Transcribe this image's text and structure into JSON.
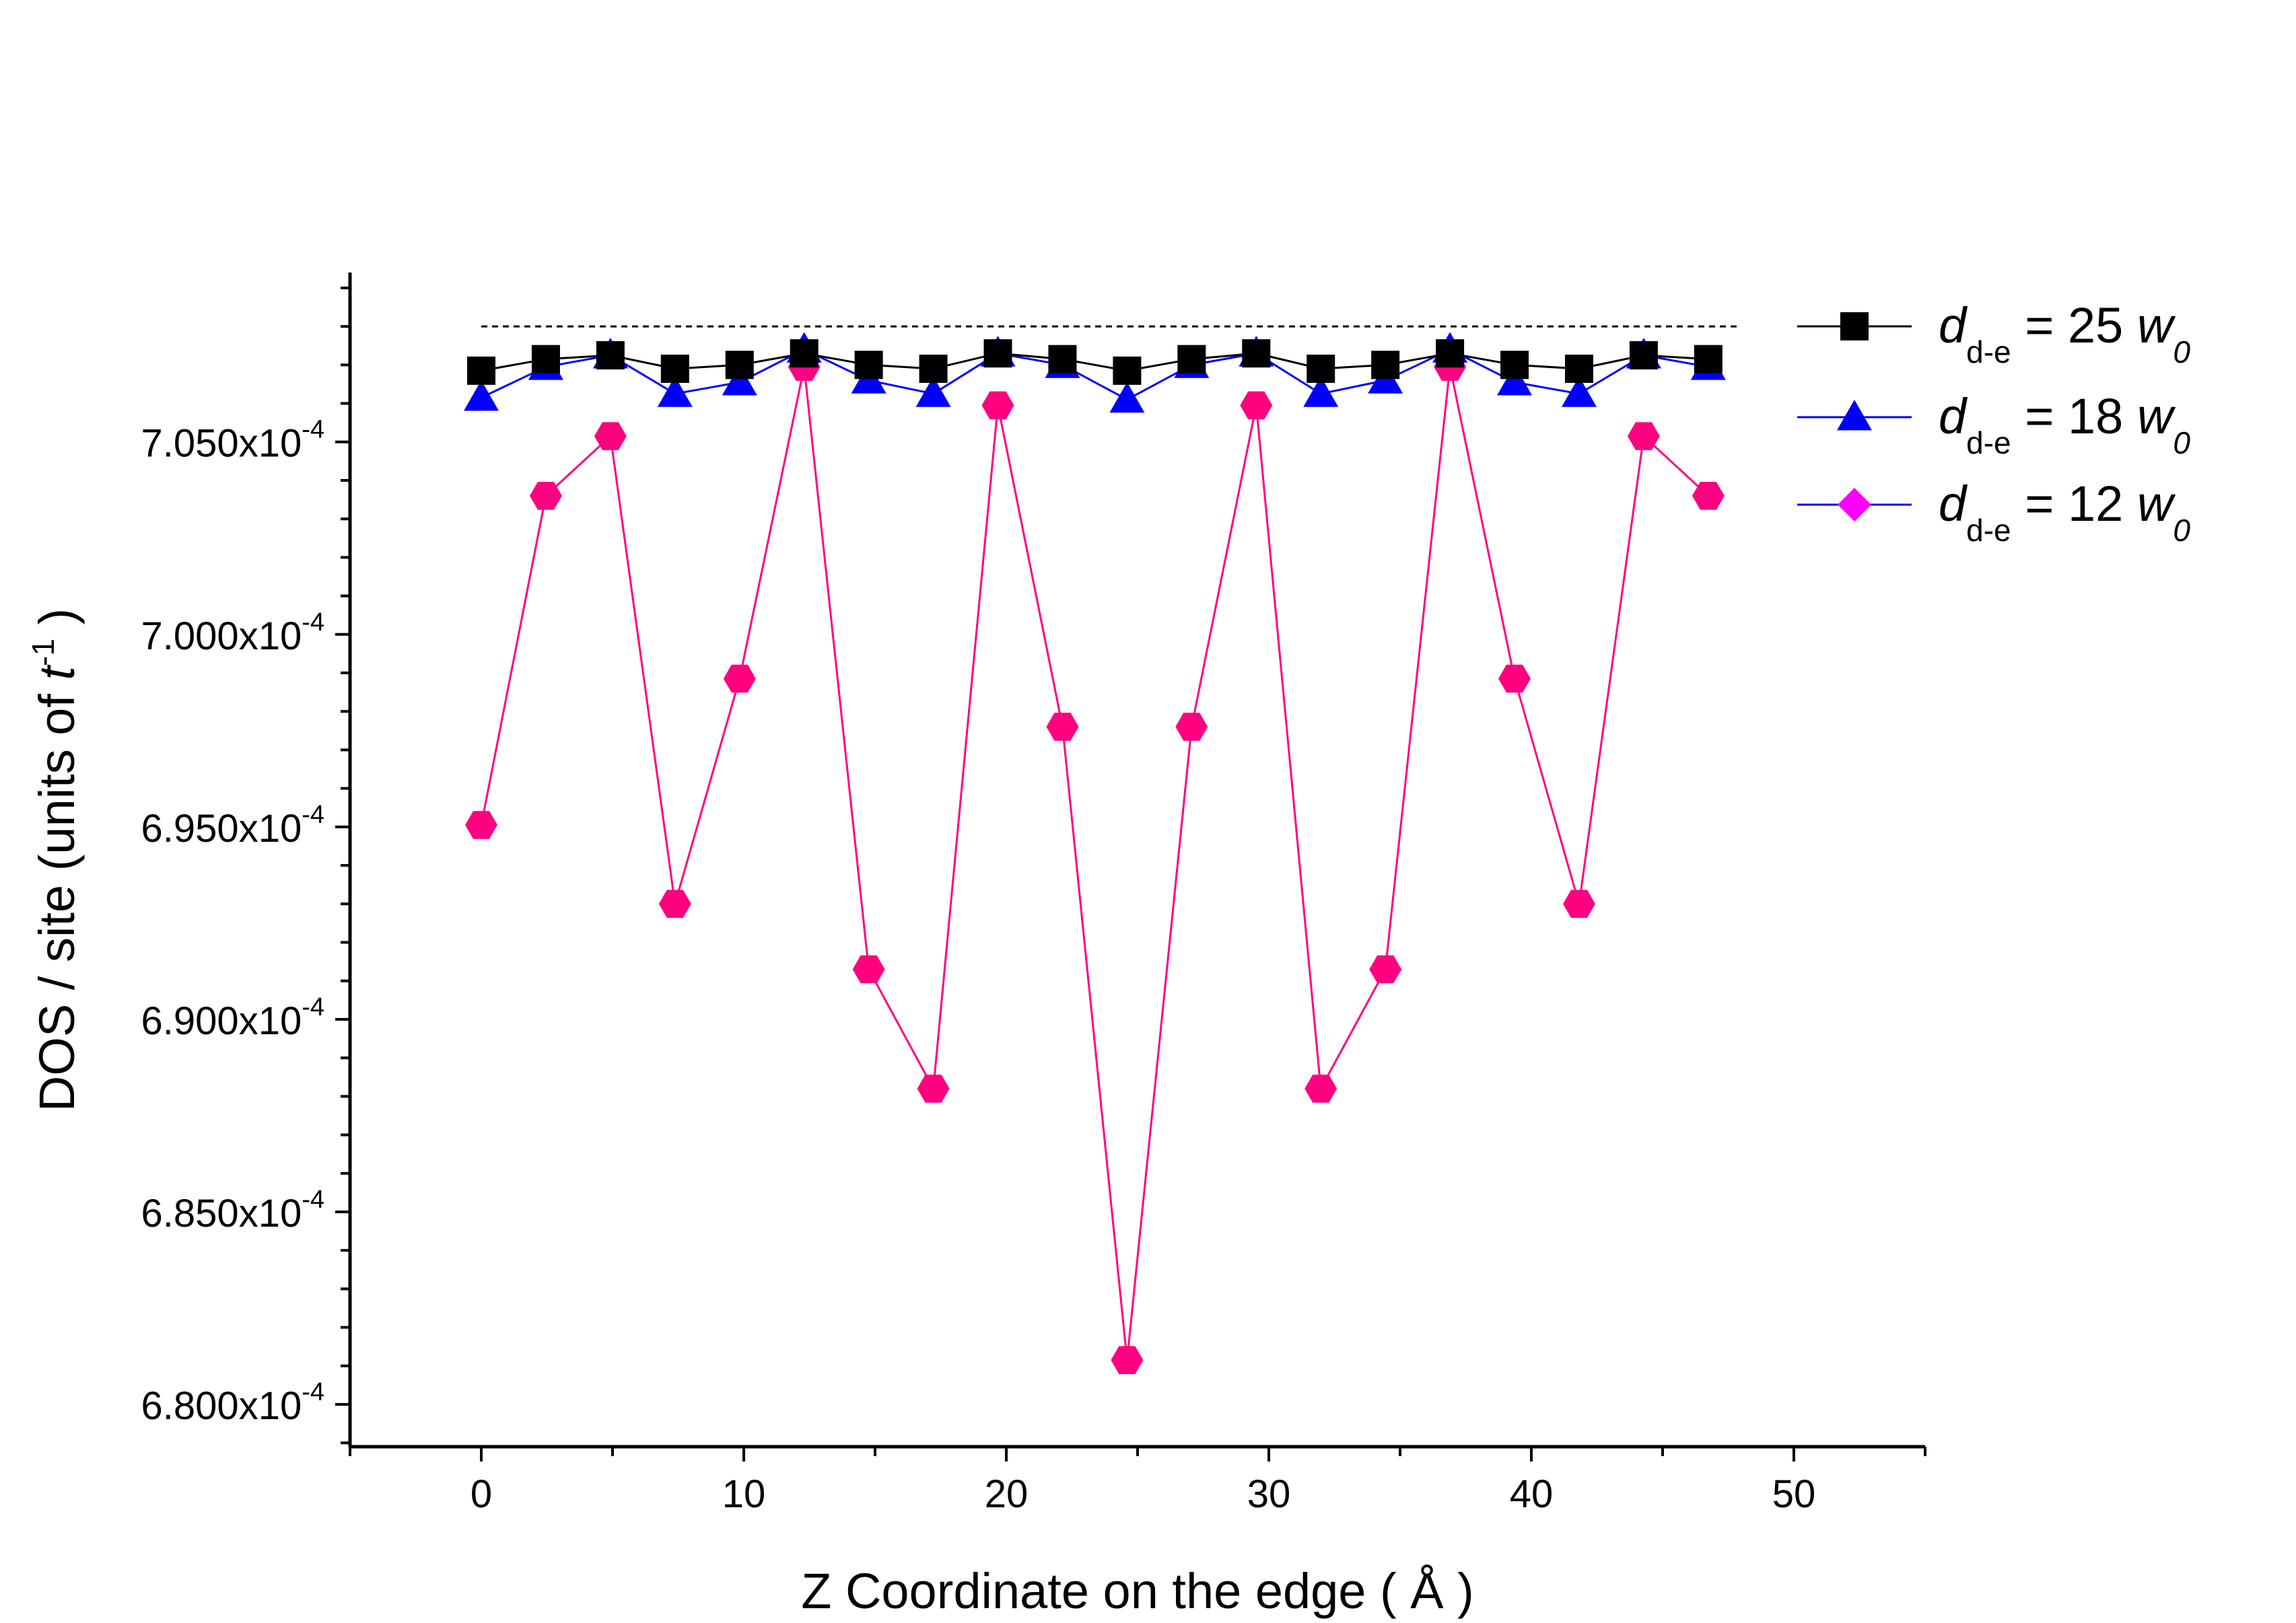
{
  "chart_data": {
    "type": "line",
    "title": "",
    "xlabel": "Z Coordinate on the edge ( Å )",
    "ylabel": {
      "prefix": "DOS / site (units of ",
      "symbol": "t",
      "exponent": "-1",
      "suffix": " )"
    },
    "xlim": [
      -5,
      55
    ],
    "ylim": [
      0.0006789,
      0.0007094
    ],
    "x_ticks": [
      0,
      10,
      20,
      30,
      40,
      50
    ],
    "x_tick_labels": [
      "0",
      "10",
      "20",
      "30",
      "40",
      "50"
    ],
    "y_ticks": [
      0.00068,
      0.000685,
      0.00069,
      0.000695,
      0.0007,
      0.000705
    ],
    "y_tick_labels": [
      {
        "mantissa": "6.800x10",
        "exponent": "-4"
      },
      {
        "mantissa": "6.850x10",
        "exponent": "-4"
      },
      {
        "mantissa": "6.900x10",
        "exponent": "-4"
      },
      {
        "mantissa": "6.950x10",
        "exponent": "-4"
      },
      {
        "mantissa": "7.000x10",
        "exponent": "-4"
      },
      {
        "mantissa": "7.050x10",
        "exponent": "-4"
      }
    ],
    "x": [
      0,
      2.46,
      4.92,
      7.38,
      9.84,
      12.3,
      14.76,
      17.22,
      19.68,
      22.14,
      24.6,
      27.06,
      29.52,
      31.98,
      34.44,
      36.9,
      39.36,
      41.82,
      44.28,
      46.74
    ],
    "reference_line": {
      "y": 0.000708,
      "x_range": [
        0,
        48
      ],
      "style": "dotted"
    },
    "series": [
      {
        "name": "d_{d-e} = 25 w_0",
        "legend": {
          "symbol": "d",
          "subscript": "d-e",
          "eq": " = 25 ",
          "w": "w",
          "w_sub": "0"
        },
        "marker": "square",
        "color": "#000000",
        "marker_color": "#000000",
        "values": [
          0.00070685,
          0.00070715,
          0.00070725,
          0.0007069,
          0.000707,
          0.0007073,
          0.000707,
          0.0007069,
          0.0007073,
          0.00070715,
          0.00070685,
          0.00070715,
          0.0007073,
          0.0007069,
          0.000707,
          0.0007073,
          0.000707,
          0.0007069,
          0.00070725,
          0.00070715
        ]
      },
      {
        "name": "d_{d-e} = 18 w_0",
        "legend": {
          "symbol": "d",
          "subscript": "d-e",
          "eq": " = 18 ",
          "w": "w",
          "w_sub": "0"
        },
        "marker": "triangle",
        "color": "#0000ff",
        "marker_color": "#0000ff",
        "values": [
          0.00070615,
          0.00070695,
          0.00070725,
          0.00070625,
          0.00070655,
          0.0007074,
          0.0007066,
          0.00070625,
          0.0007073,
          0.000707,
          0.0007061,
          0.000707,
          0.0007073,
          0.00070625,
          0.0007066,
          0.0007074,
          0.00070655,
          0.00070625,
          0.00070725,
          0.00070695
        ]
      },
      {
        "name": "d_{d-e} = 12 w_0",
        "legend": {
          "symbol": "d",
          "subscript": "d-e",
          "eq": " = 12 ",
          "w": "w",
          "w_sub": "0"
        },
        "marker": "hexagon",
        "legend_marker": "diamond",
        "color": "#ff0080",
        "marker_color": "#ff0080",
        "legend_line_color": "#0000ff",
        "legend_marker_color": "#ff00ff",
        "values": [
          0.00069505,
          0.0007036,
          0.00070515,
          0.000693,
          0.00069885,
          0.00070695,
          0.0006913,
          0.0006882,
          0.00070595,
          0.0006976,
          0.00068115,
          0.0006976,
          0.00070595,
          0.0006882,
          0.0006913,
          0.00070695,
          0.00069885,
          0.000693,
          0.00070515,
          0.0007036
        ]
      }
    ],
    "legend_position": "top-right"
  }
}
